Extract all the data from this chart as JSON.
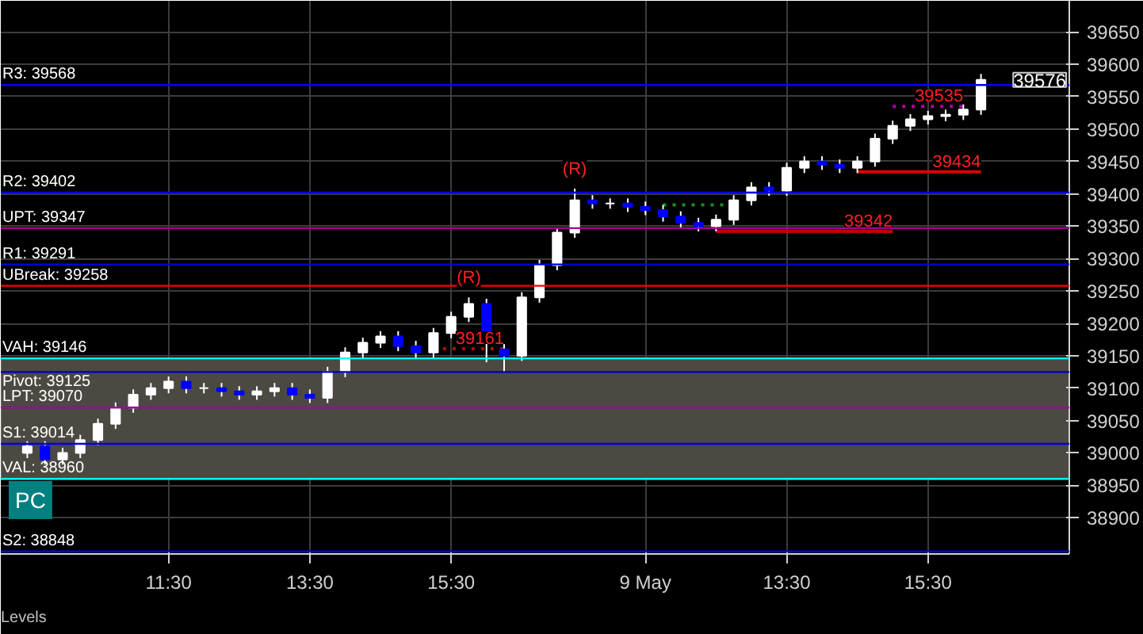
{
  "chart_data": {
    "type": "candlestick",
    "categories": [
      null,
      null,
      null,
      null,
      null,
      null,
      null,
      null,
      "11:30",
      null,
      null,
      null,
      null,
      null,
      null,
      null,
      "13:30",
      null,
      null,
      null,
      null,
      null,
      null,
      null,
      "15:30",
      null,
      null,
      null,
      null,
      null,
      null,
      null,
      null,
      null,
      null,
      "9 May",
      null,
      null,
      null,
      null,
      null,
      null,
      null,
      "13:30",
      null,
      null,
      null,
      null,
      null,
      null,
      null,
      "15:30",
      null,
      null,
      null
    ],
    "ohlc": [
      [
        39000,
        39018,
        38992,
        39010
      ],
      [
        39010,
        39018,
        38982,
        38990
      ],
      [
        38990,
        39008,
        38982,
        39000
      ],
      [
        39000,
        39028,
        38992,
        39020
      ],
      [
        39020,
        39053,
        39012,
        39045
      ],
      [
        39045,
        39078,
        39037,
        39070
      ],
      [
        39070,
        39098,
        39062,
        39090
      ],
      [
        39090,
        39108,
        39082,
        39100
      ],
      [
        39100,
        39118,
        39092,
        39110
      ],
      [
        39110,
        39118,
        39092,
        39100
      ],
      [
        39100,
        39108,
        39092,
        39100
      ],
      [
        39100,
        39108,
        39087,
        39095
      ],
      [
        39095,
        39103,
        39082,
        39090
      ],
      [
        39090,
        39103,
        39082,
        39095
      ],
      [
        39095,
        39108,
        39087,
        39100
      ],
      [
        39100,
        39108,
        39082,
        39090
      ],
      [
        39090,
        39098,
        39077,
        39085
      ],
      [
        39085,
        39133,
        39077,
        39125
      ],
      [
        39125,
        39163,
        39117,
        39155
      ],
      [
        39155,
        39178,
        39147,
        39170
      ],
      [
        39170,
        39188,
        39162,
        39180
      ],
      [
        39180,
        39188,
        39157,
        39165
      ],
      [
        39165,
        39173,
        39147,
        39155
      ],
      [
        39155,
        39193,
        39147,
        39185
      ],
      [
        39185,
        39218,
        39177,
        39210
      ],
      [
        39210,
        39240,
        39202,
        39230
      ],
      [
        39230,
        39238,
        39140,
        39170
      ],
      [
        39160,
        39168,
        39125,
        39150
      ],
      [
        39150,
        39248,
        39142,
        39240
      ],
      [
        39240,
        39298,
        39232,
        39290
      ],
      [
        39290,
        39348,
        39282,
        39340
      ],
      [
        39340,
        39408,
        39332,
        39390
      ],
      [
        39390,
        39398,
        39377,
        39385
      ],
      [
        39385,
        39393,
        39377,
        39385
      ],
      [
        39385,
        39393,
        39372,
        39380
      ],
      [
        39380,
        39388,
        39367,
        39375
      ],
      [
        39375,
        39383,
        39357,
        39365
      ],
      [
        39365,
        39373,
        39347,
        39355
      ],
      [
        39355,
        39363,
        39342,
        39350
      ],
      [
        39350,
        39368,
        39342,
        39360
      ],
      [
        39360,
        39398,
        39352,
        39390
      ],
      [
        39390,
        39418,
        39382,
        39410
      ],
      [
        39410,
        39418,
        39397,
        39405
      ],
      [
        39405,
        39448,
        39397,
        39440
      ],
      [
        39440,
        39458,
        39432,
        39450
      ],
      [
        39450,
        39458,
        39437,
        39445
      ],
      [
        39445,
        39453,
        39432,
        39440
      ],
      [
        39440,
        39458,
        39432,
        39450
      ],
      [
        39450,
        39493,
        39442,
        39485
      ],
      [
        39485,
        39513,
        39477,
        39505
      ],
      [
        39505,
        39523,
        39497,
        39515
      ],
      [
        39515,
        39528,
        39507,
        39520
      ],
      [
        39520,
        39530,
        39512,
        39522
      ],
      [
        39522,
        39538,
        39514,
        39530
      ],
      [
        39530,
        39585,
        39522,
        39576
      ]
    ],
    "series": [
      {
        "type": "line",
        "color": "#e00000",
        "line_style": "solid",
        "values": [
          null,
          null,
          null,
          null,
          null,
          null,
          null,
          null,
          null,
          null,
          null,
          null,
          null,
          null,
          null,
          null,
          null,
          null,
          null,
          null,
          null,
          null,
          null,
          null,
          null,
          null,
          null,
          null,
          null,
          null,
          null,
          null,
          null,
          null,
          null,
          null,
          null,
          null,
          null,
          null,
          null,
          null,
          null,
          null,
          null,
          null,
          null,
          39434,
          39434,
          39434,
          39434,
          39434,
          39434,
          39434,
          39434
        ]
      },
      {
        "type": "line",
        "color": "#c00000",
        "line_style": "solid",
        "values": [
          null,
          null,
          null,
          null,
          null,
          null,
          null,
          null,
          null,
          null,
          null,
          null,
          null,
          null,
          null,
          null,
          null,
          null,
          null,
          null,
          null,
          null,
          null,
          null,
          null,
          null,
          null,
          null,
          null,
          null,
          null,
          null,
          null,
          null,
          null,
          null,
          null,
          null,
          null,
          39342,
          39342,
          39342,
          39342,
          39342,
          39342,
          39342,
          39342,
          39342,
          39342,
          39342,
          null,
          null,
          null,
          null,
          null
        ]
      },
      {
        "type": "line",
        "color": "#c00000",
        "line_style": "dotted",
        "values": [
          null,
          null,
          null,
          null,
          null,
          null,
          null,
          null,
          null,
          null,
          null,
          null,
          null,
          null,
          null,
          null,
          null,
          null,
          null,
          null,
          null,
          null,
          null,
          39161,
          39161,
          39161,
          39161,
          39161,
          null,
          null,
          null,
          null,
          null,
          null,
          null,
          null,
          null,
          null,
          null,
          null,
          null,
          null,
          null,
          null,
          null,
          null,
          null,
          null,
          null,
          null,
          null,
          null,
          null,
          null,
          null
        ]
      },
      {
        "type": "line",
        "color": "#b000b0",
        "line_style": "dotted",
        "values": [
          null,
          null,
          null,
          null,
          null,
          null,
          null,
          null,
          null,
          null,
          null,
          null,
          null,
          null,
          null,
          null,
          null,
          null,
          null,
          null,
          null,
          null,
          null,
          null,
          null,
          null,
          null,
          null,
          null,
          null,
          null,
          null,
          null,
          null,
          null,
          null,
          null,
          null,
          null,
          null,
          null,
          null,
          null,
          null,
          null,
          null,
          null,
          null,
          null,
          39535,
          39535,
          39535,
          39535,
          39535,
          null
        ]
      },
      {
        "type": "line",
        "color": "#1e8c1e",
        "line_style": "dotted",
        "values": [
          null,
          null,
          null,
          null,
          null,
          null,
          null,
          null,
          null,
          null,
          null,
          null,
          null,
          null,
          null,
          null,
          null,
          null,
          null,
          null,
          null,
          null,
          null,
          null,
          null,
          null,
          null,
          null,
          null,
          null,
          null,
          null,
          null,
          null,
          null,
          null,
          39383,
          39383,
          39383,
          39383,
          39383,
          null,
          null,
          null,
          null,
          null,
          null,
          null,
          null,
          null,
          null,
          null,
          null,
          null,
          null
        ]
      }
    ],
    "ref_lines": [
      {
        "axis": "y",
        "value": 39568,
        "label": "R3: 39568",
        "color": "#0000ff"
      },
      {
        "axis": "y",
        "value": 39402,
        "label": "R2: 39402",
        "color": "#0000e0"
      },
      {
        "axis": "y",
        "value": 39347,
        "label": "UPT: 39347",
        "color": "#a000a0"
      },
      {
        "axis": "y",
        "value": 39291,
        "label": "R1: 39291",
        "color": "#0000e0"
      },
      {
        "axis": "y",
        "value": 39258,
        "label": "UBreak: 39258",
        "color": "#ff0000"
      },
      {
        "axis": "y",
        "value": 39146,
        "label": "VAH: 39146",
        "color": "#00ffff"
      },
      {
        "axis": "y",
        "value": 39125,
        "label": "Pivot: 39125",
        "color": "#0000c0"
      },
      {
        "axis": "y",
        "value": 39070,
        "label": "LPT: 39070",
        "color": "#a000a0"
      },
      {
        "axis": "y",
        "value": 39014,
        "label": "S1: 39014",
        "color": "#0000e0"
      },
      {
        "axis": "y",
        "value": 38960,
        "label": "VAL: 38960",
        "color": "#00ffff"
      },
      {
        "axis": "y",
        "value": 38848,
        "label": "S2: 38848",
        "color": "#0000e0"
      }
    ],
    "bands": [
      {
        "axis": "y",
        "from": 38960,
        "to": 39146,
        "label": null,
        "color": "#4b4942"
      }
    ],
    "annotations": [
      "PC",
      "Levels",
      "39576",
      {
        "text": "(R)",
        "y": 39240
      },
      {
        "text": "(R)",
        "y": 39408
      },
      {
        "text": "39434",
        "y": 39434
      },
      {
        "text": "39342",
        "y": 39342
      },
      {
        "text": "39161",
        "y": 39161
      },
      {
        "text": "39535",
        "y": 39535
      }
    ],
    "ylim": [
      38844,
      39698
    ],
    "yticks": [
      38900,
      38950,
      39000,
      39050,
      39100,
      39150,
      39200,
      39250,
      39300,
      39350,
      39400,
      39450,
      39500,
      39550,
      39600,
      39650
    ],
    "grid": true
  }
}
